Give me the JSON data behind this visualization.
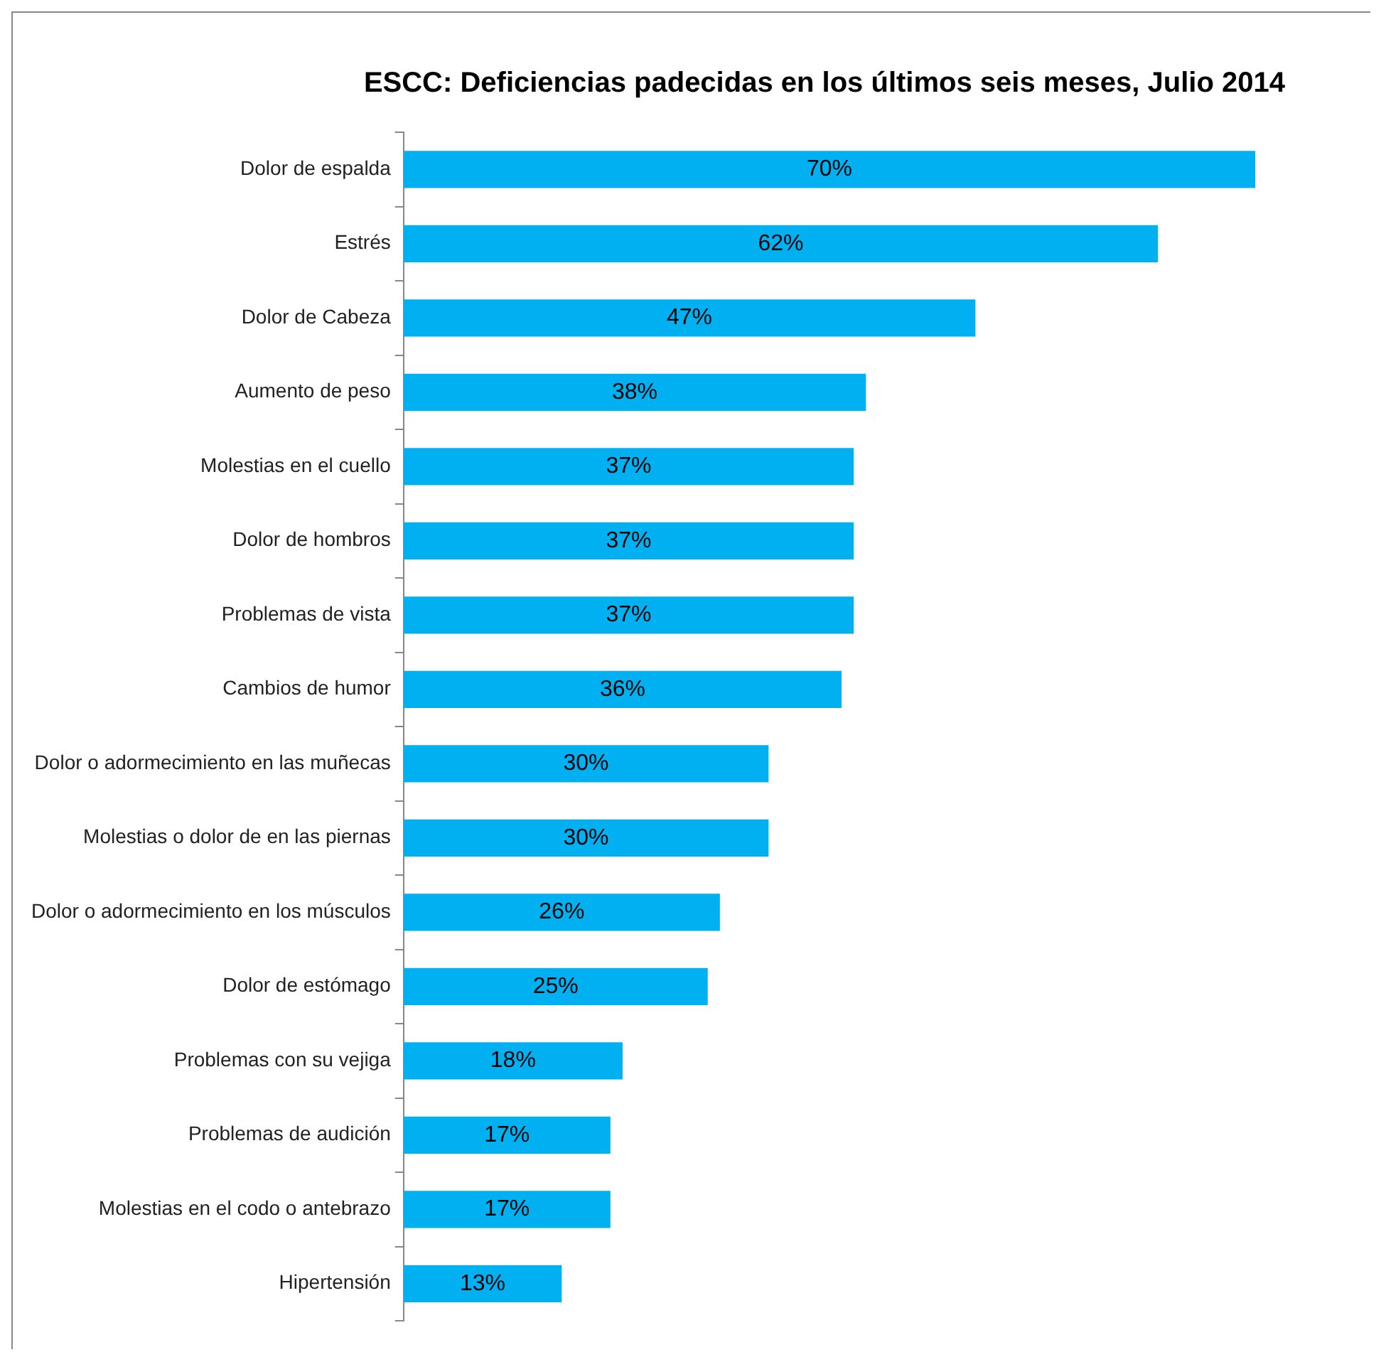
{
  "chart_data": {
    "type": "bar",
    "orientation": "horizontal",
    "title": "ESCC: Deficiencias padecidas en los últimos seis meses, Julio 2014",
    "categories": [
      "Dolor de espalda",
      "Estrés",
      "Dolor de Cabeza",
      "Aumento de peso",
      "Molestias en el cuello",
      "Dolor de hombros",
      "Problemas de vista",
      "Cambios de humor",
      "Dolor o adormecimiento en las muñecas",
      "Molestias o dolor de en las piernas",
      "Dolor o adormecimiento en los músculos",
      "Dolor de estómago",
      "Problemas con su vejiga",
      "Problemas de audición",
      "Molestias en el codo o antebrazo",
      "Hipertensión"
    ],
    "values": [
      70,
      62,
      47,
      38,
      37,
      37,
      37,
      36,
      30,
      30,
      26,
      25,
      18,
      17,
      17,
      13
    ],
    "value_labels": [
      "70%",
      "62%",
      "47%",
      "38%",
      "37%",
      "37%",
      "37%",
      "36%",
      "30%",
      "30%",
      "26%",
      "25%",
      "18%",
      "17%",
      "17%",
      "13%"
    ],
    "color": "#00b0f0"
  }
}
